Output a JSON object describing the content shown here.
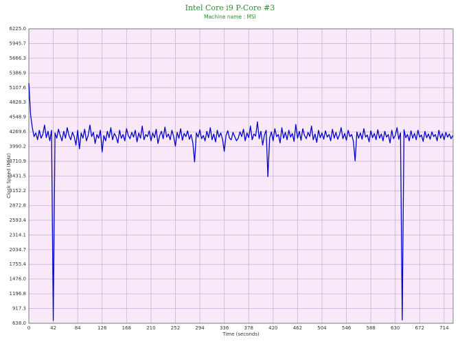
{
  "chart_data": {
    "type": "line",
    "title": "Intel Core i9 P-Core #3",
    "subtitle": "Machine name : MSI",
    "x_label": "Time (seconds)",
    "y_label": "Clock Speed (MHz)",
    "xlim": [
      0,
      729.5
    ],
    "ylim": [
      638,
      6225
    ],
    "xticks": [
      0,
      42,
      84,
      126,
      168,
      210,
      252,
      294,
      336,
      378,
      420,
      462,
      504,
      546,
      588,
      630,
      672,
      714
    ],
    "yticks": [
      {
        "value": 638,
        "label": "638.0"
      },
      917.3,
      1196.8,
      {
        "value": 1476,
        "label": "1476.0"
      },
      1755.4,
      2034.7,
      2314.1,
      2593.4,
      2872.8,
      3152.2,
      3431.5,
      3710.9,
      3990.2,
      4269.6,
      4548.9,
      4828.3,
      5107.6,
      5386.9,
      5666.3,
      5945.7,
      {
        "value": 6225,
        "label": "6225.0"
      }
    ],
    "grid": true,
    "plot_background": "#f8e8f8",
    "grid_color": "#c9b3d9",
    "x": [
      0,
      3,
      6,
      9,
      12,
      15,
      18,
      21,
      24,
      27,
      30,
      33,
      36,
      39,
      42,
      45,
      48,
      51,
      54,
      57,
      60,
      63,
      66,
      69,
      72,
      75,
      78,
      81,
      84,
      87,
      90,
      93,
      96,
      99,
      102,
      105,
      108,
      111,
      114,
      117,
      120,
      123,
      126,
      129,
      132,
      135,
      138,
      141,
      144,
      147,
      150,
      153,
      156,
      159,
      162,
      165,
      168,
      171,
      174,
      177,
      180,
      183,
      186,
      189,
      192,
      195,
      198,
      201,
      204,
      207,
      210,
      213,
      216,
      219,
      222,
      225,
      228,
      231,
      234,
      237,
      240,
      243,
      246,
      249,
      252,
      255,
      258,
      261,
      264,
      267,
      270,
      273,
      276,
      279,
      282,
      285,
      288,
      291,
      294,
      297,
      300,
      303,
      306,
      309,
      312,
      315,
      318,
      321,
      324,
      327,
      330,
      333,
      336,
      339,
      342,
      345,
      348,
      351,
      354,
      357,
      360,
      363,
      366,
      369,
      372,
      375,
      378,
      381,
      384,
      387,
      390,
      393,
      396,
      399,
      402,
      405,
      408,
      411,
      414,
      417,
      420,
      423,
      426,
      429,
      432,
      435,
      438,
      441,
      444,
      447,
      450,
      453,
      456,
      459,
      462,
      465,
      468,
      471,
      474,
      477,
      480,
      483,
      486,
      489,
      492,
      495,
      498,
      501,
      504,
      507,
      510,
      513,
      516,
      519,
      522,
      525,
      528,
      531,
      534,
      537,
      540,
      543,
      546,
      549,
      552,
      555,
      558,
      561,
      564,
      567,
      570,
      573,
      576,
      579,
      582,
      585,
      588,
      591,
      594,
      597,
      600,
      603,
      606,
      609,
      612,
      615,
      618,
      621,
      624,
      627,
      630,
      633,
      636,
      639,
      642,
      645,
      648,
      651,
      654,
      657,
      660,
      663,
      666,
      669,
      672,
      675,
      678,
      681,
      684,
      687,
      690,
      693,
      696,
      699,
      702,
      705,
      708,
      711,
      714,
      717,
      720,
      723,
      726,
      729
    ],
    "series": [
      {
        "name": "Clock Speed",
        "color": "#0000cc",
        "values": [
          5195,
          4600,
          4350,
          4180,
          4250,
          4120,
          4300,
          4150,
          4220,
          4400,
          4160,
          4280,
          4100,
          4300,
          690,
          4250,
          4150,
          4320,
          4200,
          4100,
          4280,
          4150,
          4350,
          4200,
          4120,
          4260,
          4180,
          4020,
          4300,
          3950,
          4250,
          4150,
          4320,
          4100,
          4200,
          4400,
          4180,
          4260,
          4050,
          4220,
          4150,
          4300,
          3890,
          4200,
          4100,
          4280,
          4160,
          4350,
          4120,
          4240,
          4180,
          4060,
          4300,
          4150,
          4220,
          4100,
          4330,
          4200,
          4140,
          4260,
          4170,
          4300,
          4080,
          4250,
          4150,
          4380,
          4120,
          4220,
          4180,
          4290,
          4100,
          4250,
          4160,
          4320,
          4050,
          4200,
          4280,
          4140,
          4360,
          4170,
          4230,
          4120,
          4300,
          4180,
          4000,
          4260,
          4150,
          4330,
          4110,
          4240,
          4180,
          4290,
          4130,
          4220,
          4060,
          3700,
          4250,
          4170,
          4310,
          4140,
          4200,
          4100,
          4280,
          4160,
          4350,
          4120,
          4230,
          4080,
          4300,
          4170,
          4250,
          4130,
          3900,
          4200,
          4290,
          4150,
          4120,
          4260,
          4180,
          4100,
          4150,
          4270,
          4180,
          4320,
          4100,
          4250,
          4160,
          4380,
          4120,
          4230,
          4190,
          4460,
          4140,
          4280,
          4020,
          4210,
          4300,
          3420,
          4150,
          4270,
          4100,
          4330,
          4180,
          4220,
          4060,
          4350,
          4150,
          4260,
          4120,
          4300,
          4170,
          4240,
          4090,
          4410,
          4150,
          4280,
          4110,
          4330,
          4200,
          4140,
          4260,
          4180,
          4380,
          4120,
          4230,
          4070,
          4300,
          4160,
          4250,
          4130,
          4290,
          4170,
          4220,
          4100,
          4320,
          4150,
          4260,
          4130,
          4210,
          4350,
          4140,
          4240,
          4110,
          4300,
          4180,
          4220,
          4090,
          3720,
          4270,
          4150,
          4250,
          4130,
          4330,
          4170,
          4210,
          4080,
          4290,
          4160,
          4240,
          4120,
          4310,
          4150,
          4230,
          4100,
          4280,
          4170,
          4220,
          4060,
          4300,
          4140,
          4200,
          4350,
          4130,
          4250,
          700,
          4310,
          4160,
          4220,
          4100,
          4290,
          4150,
          4240,
          4120,
          4300,
          4170,
          4210,
          4090,
          4280,
          4160,
          4230,
          4130,
          4270,
          4180,
          4220,
          4100,
          4300,
          4150,
          4240,
          4120,
          4260,
          4170,
          4230,
          4140,
          4200
        ]
      }
    ]
  }
}
